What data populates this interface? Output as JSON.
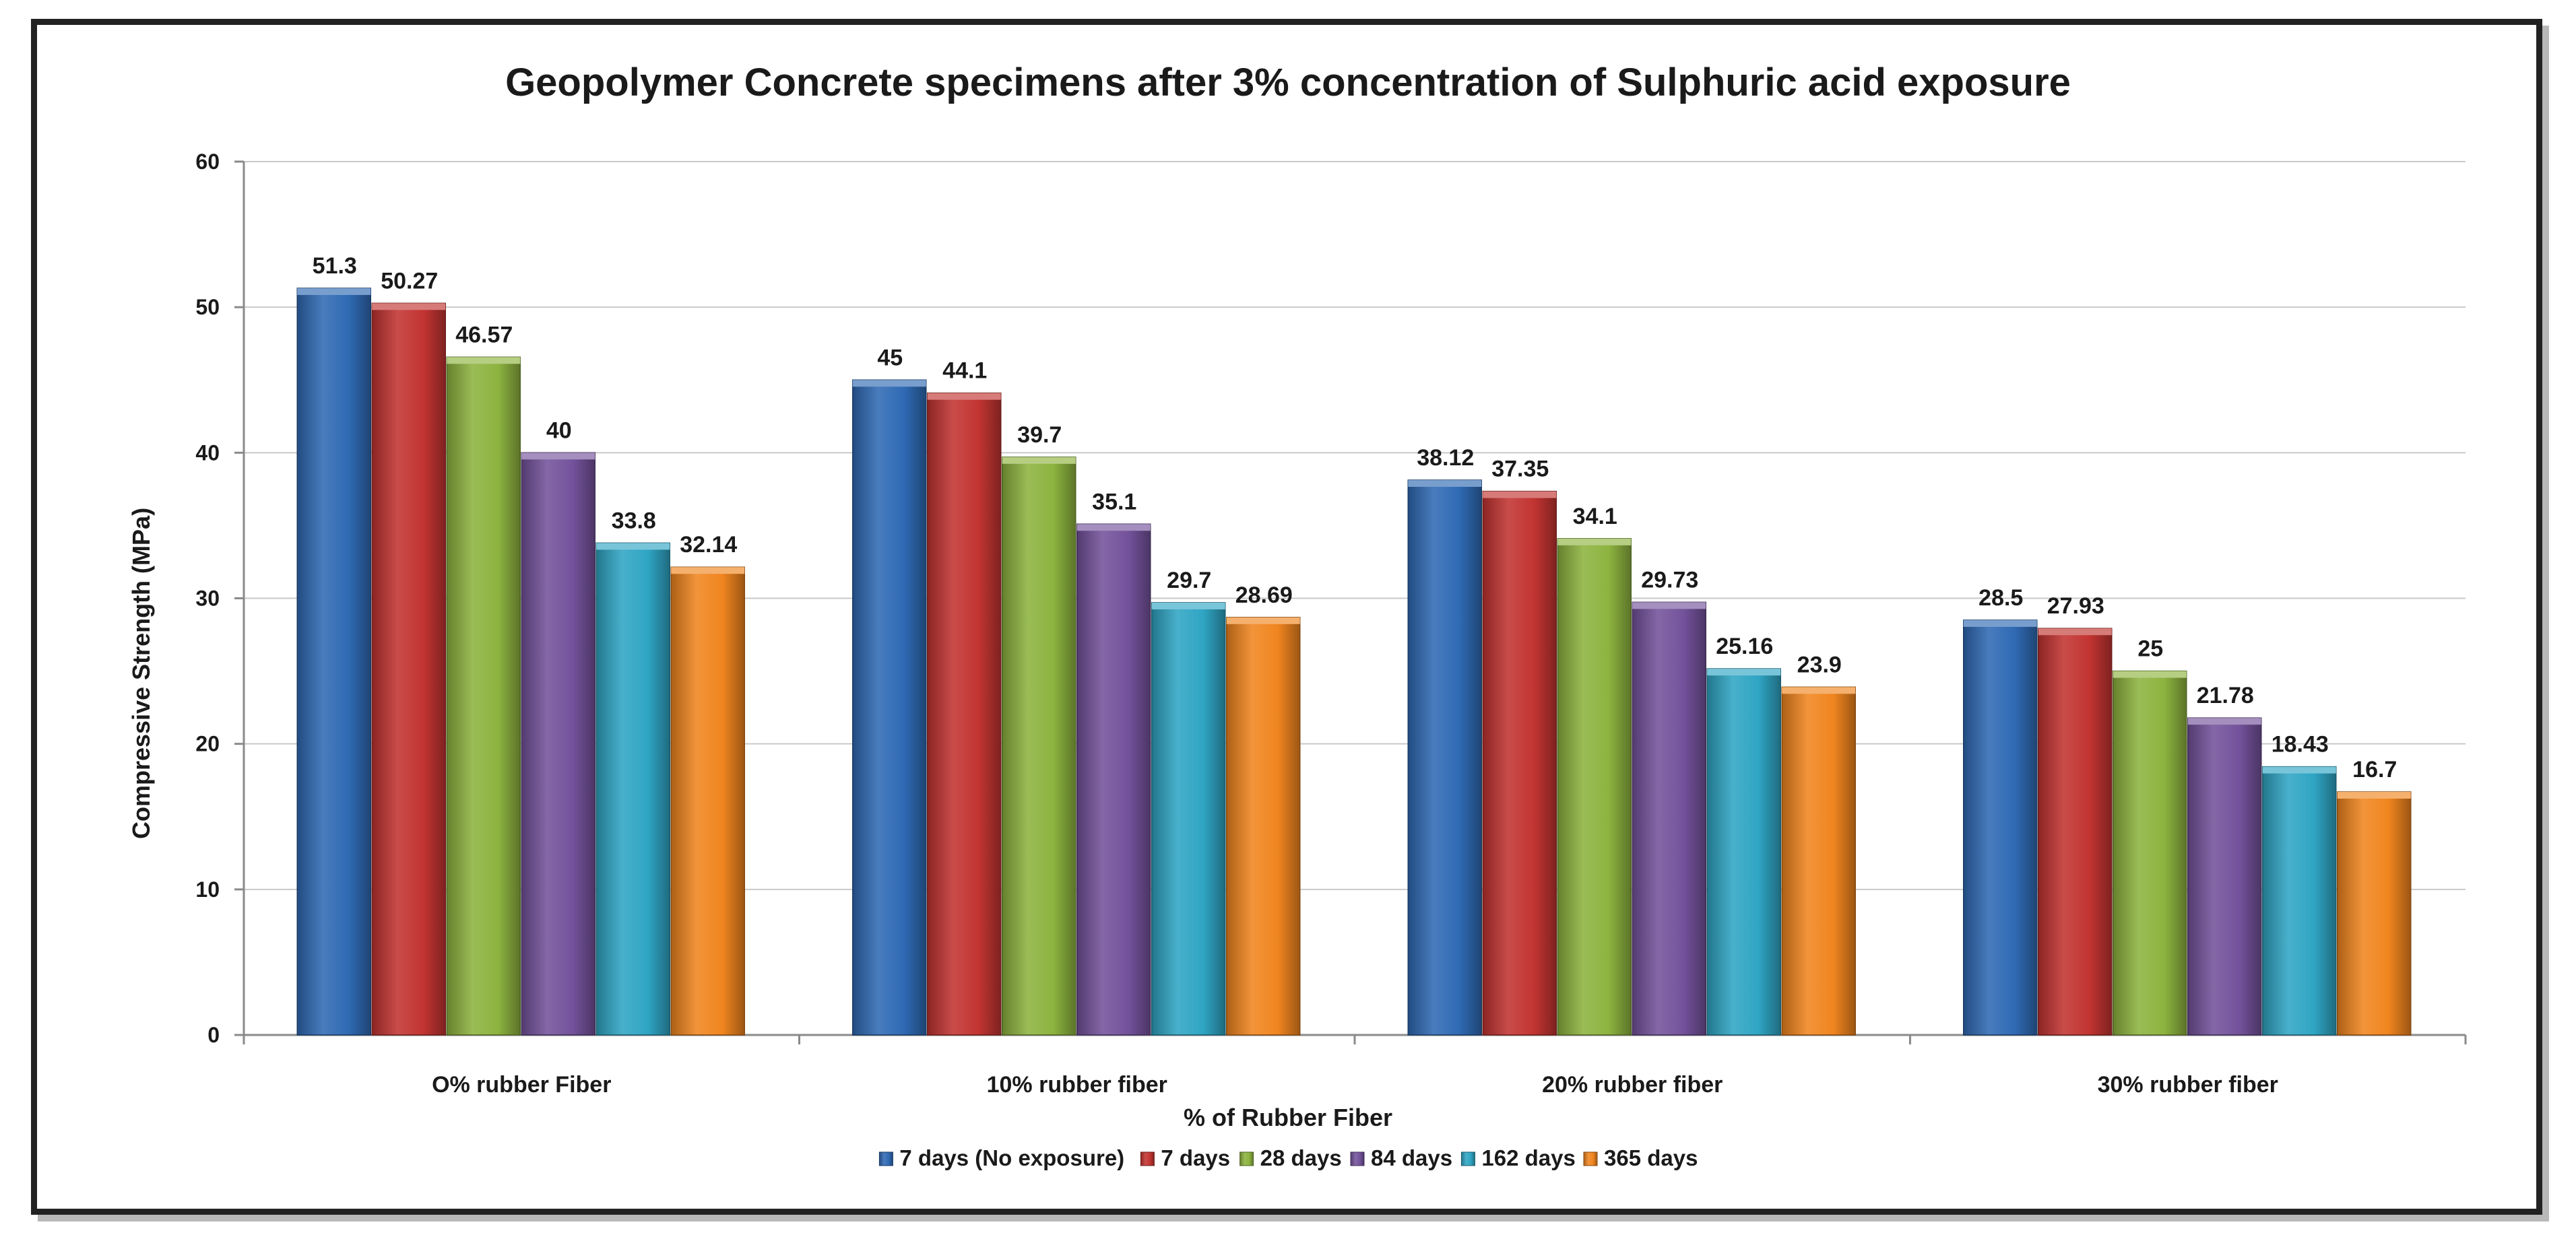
{
  "chart_data": {
    "type": "bar",
    "title": "Geopolymer Concrete specimens after 3% concentration of Sulphuric acid exposure",
    "xlabel": "% of Rubber Fiber",
    "ylabel": "Compressive Strength  (MPa)",
    "ylim": [
      0,
      60
    ],
    "yticks": [
      0,
      10,
      20,
      30,
      40,
      50,
      60
    ],
    "grid": true,
    "legend_position": "bottom",
    "categories": [
      "O% rubber Fiber",
      "10% rubber fiber",
      "20% rubber fiber",
      "30% rubber fiber"
    ],
    "series": [
      {
        "name": "7 days (No exposure)",
        "color": "#2f6ab4",
        "values": [
          51.3,
          45,
          38.12,
          28.5
        ],
        "labels": [
          "51.3",
          "45",
          "38.12",
          "28.5"
        ]
      },
      {
        "name": "7 days",
        "color": "#c23431",
        "values": [
          50.27,
          44.1,
          37.35,
          27.93
        ],
        "labels": [
          "50.27",
          "44.1",
          "37.35",
          "27.93"
        ]
      },
      {
        "name": "28 days",
        "color": "#8db33f",
        "values": [
          46.57,
          39.7,
          34.1,
          25
        ],
        "labels": [
          "46.57",
          "39.7",
          "34.1",
          "25"
        ]
      },
      {
        "name": "84 days",
        "color": "#73529b",
        "values": [
          40,
          35.1,
          29.73,
          21.78
        ],
        "labels": [
          "40",
          "35.1",
          "29.73",
          "21.78"
        ]
      },
      {
        "name": "162 days",
        "color": "#2fa5c4",
        "values": [
          33.8,
          29.7,
          25.16,
          18.43
        ],
        "labels": [
          "33.8",
          "29.7",
          "25.16",
          "18.43"
        ]
      },
      {
        "name": "365 days",
        "color": "#f0851f",
        "values": [
          32.14,
          28.69,
          23.9,
          16.7
        ],
        "labels": [
          "32.14",
          "28.69",
          "23.9",
          "16.7"
        ]
      }
    ]
  }
}
